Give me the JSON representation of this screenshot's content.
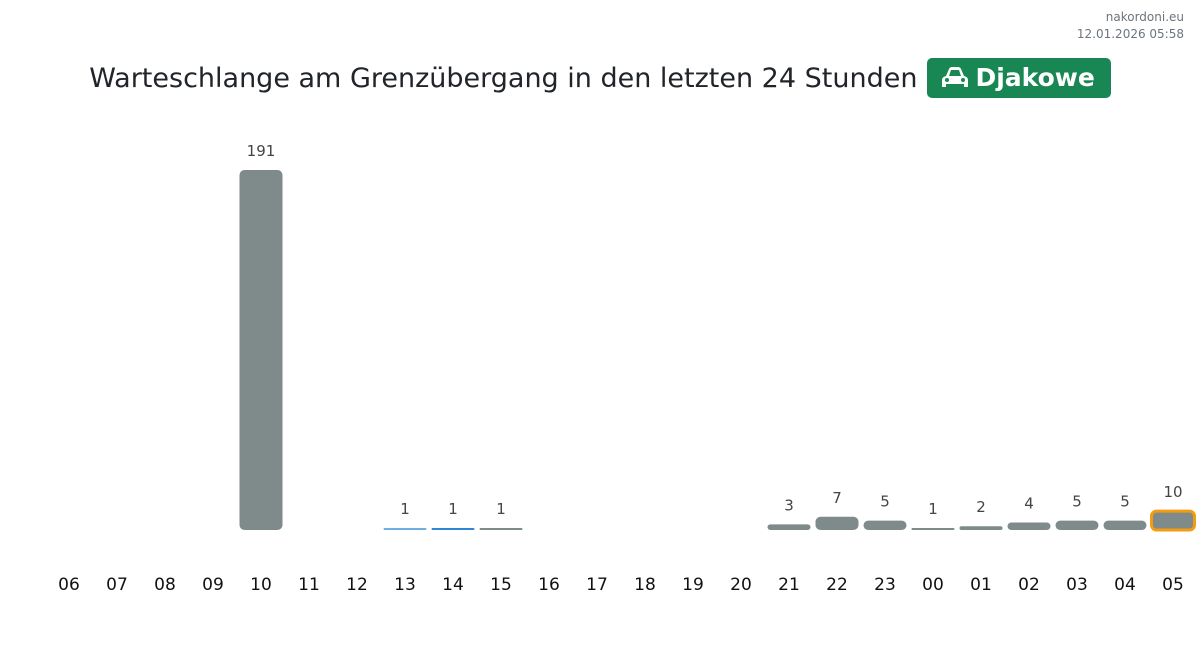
{
  "site": "nakordoni.eu",
  "timestamp": "12.01.2026 05:58",
  "chart_data": {
    "type": "bar",
    "title": "Warteschlange am Grenzübergang in den letzten 24 Stunden",
    "badge": "Djakowe",
    "categories": [
      "06",
      "07",
      "08",
      "09",
      "10",
      "11",
      "12",
      "13",
      "14",
      "15",
      "16",
      "17",
      "18",
      "19",
      "20",
      "21",
      "22",
      "23",
      "00",
      "01",
      "02",
      "03",
      "04",
      "05"
    ],
    "values": [
      null,
      null,
      null,
      null,
      191,
      null,
      null,
      1,
      1,
      1,
      null,
      null,
      null,
      null,
      null,
      3,
      7,
      5,
      1,
      2,
      4,
      5,
      5,
      10
    ],
    "colors": [
      "#7f8a8a",
      "#7f8a8a",
      "#7f8a8a",
      "#7f8a8a",
      "#7f8a8a",
      "#7f8a8a",
      "#7f8a8a",
      "#6fb0e0",
      "#2f86d4",
      "#7f8a8a",
      "#7f8a8a",
      "#7f8a8a",
      "#7f8a8a",
      "#7f8a8a",
      "#7f8a8a",
      "#7f8a8a",
      "#7f8a8a",
      "#7f8a8a",
      "#7f8a8a",
      "#7f8a8a",
      "#7f8a8a",
      "#7f8a8a",
      "#7f8a8a",
      "#7f8a8a"
    ],
    "border_colors": [
      null,
      null,
      null,
      null,
      null,
      null,
      null,
      null,
      null,
      null,
      null,
      null,
      null,
      null,
      null,
      null,
      null,
      null,
      null,
      null,
      null,
      null,
      null,
      "#f39c12"
    ]
  }
}
